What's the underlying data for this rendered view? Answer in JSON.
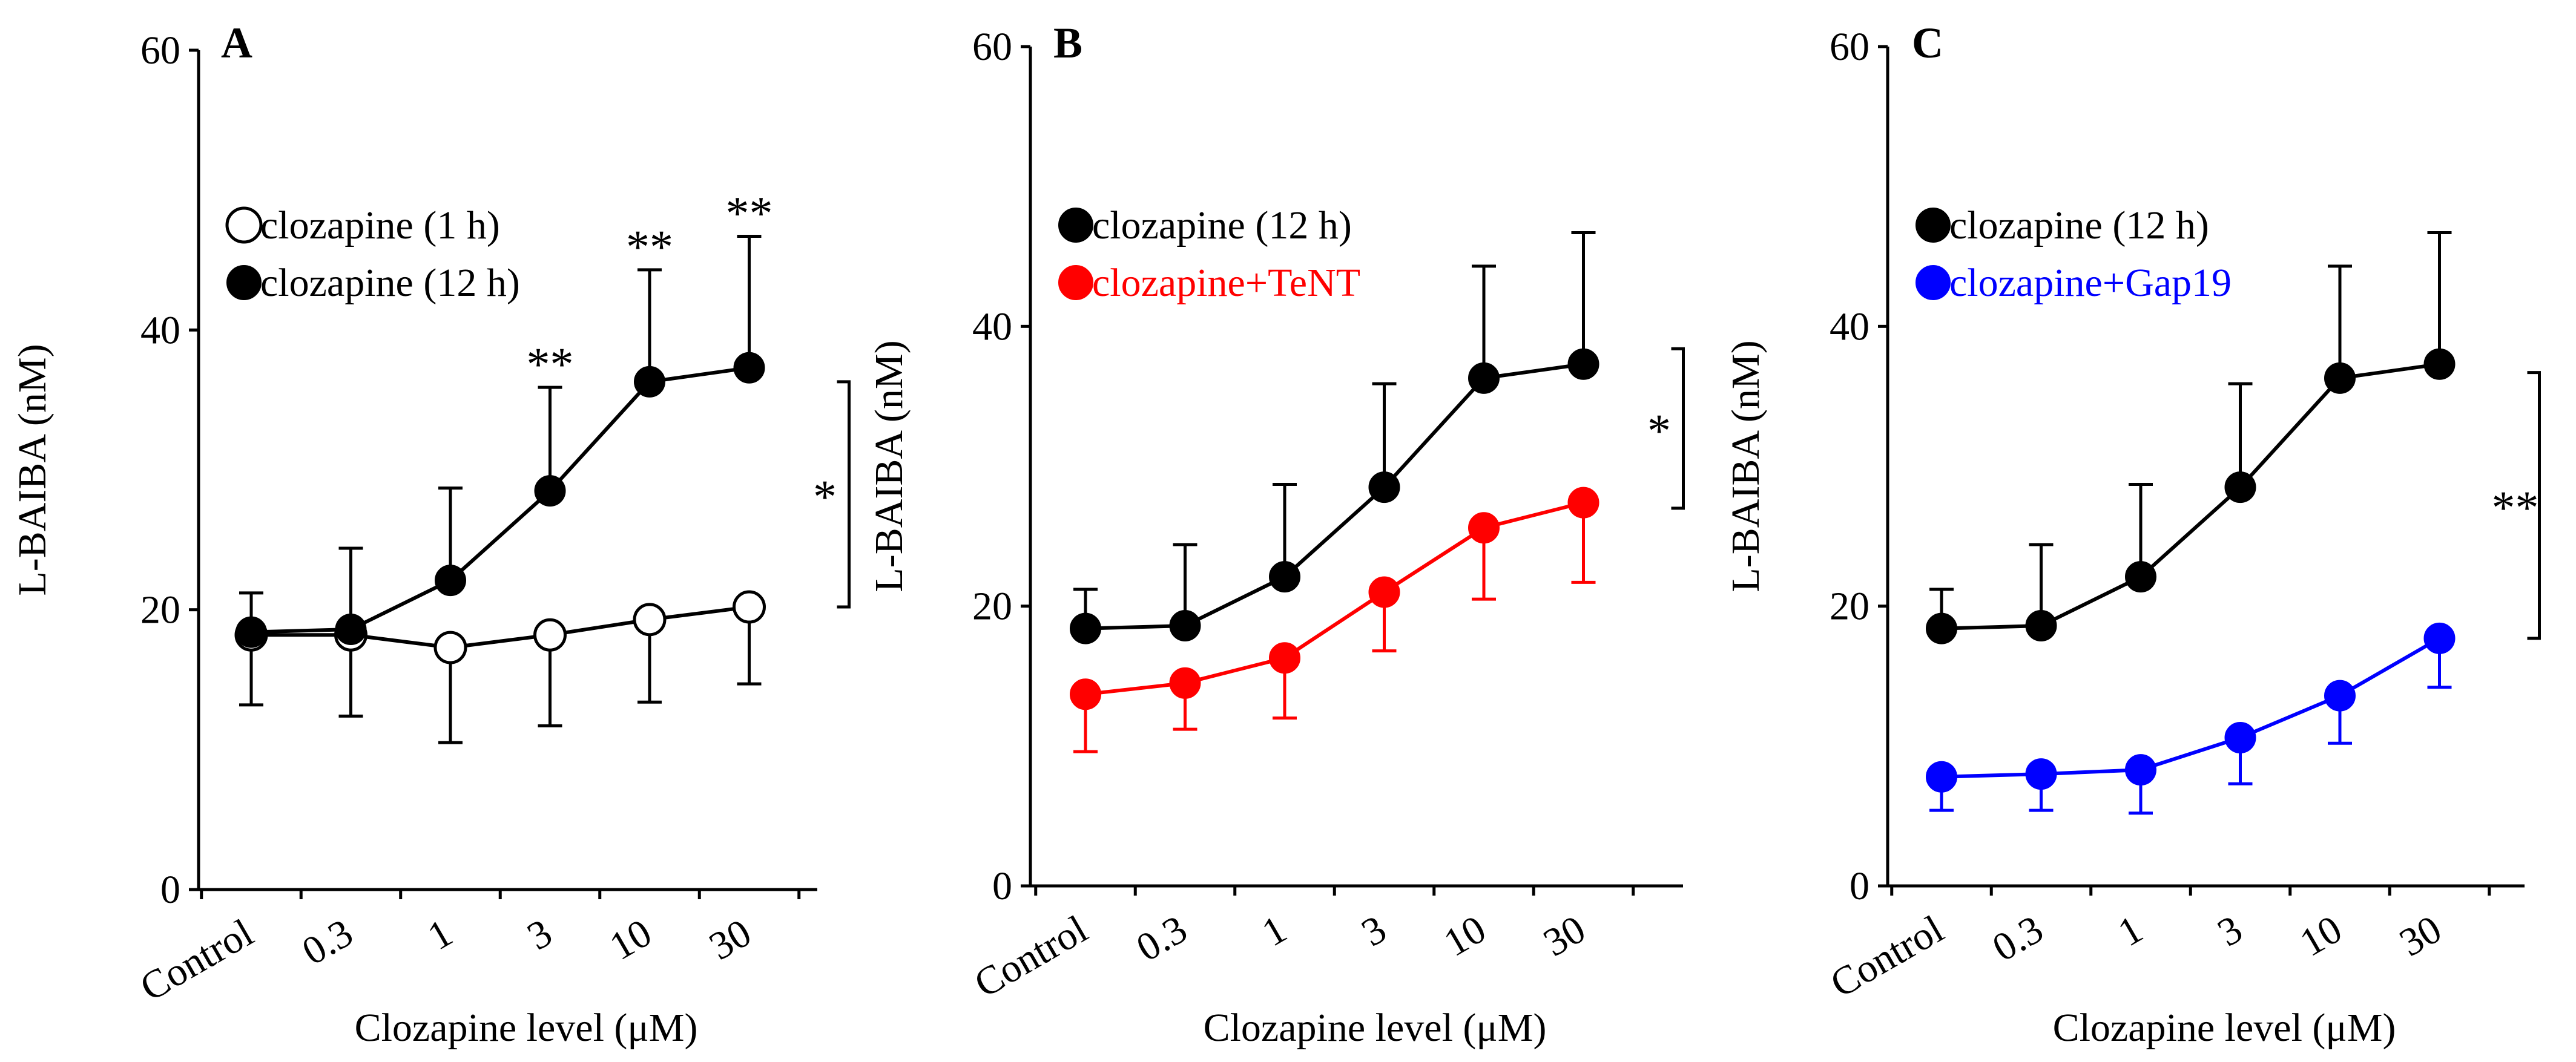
{
  "colors": {
    "black": "#000000",
    "red": "#ff0000",
    "blue": "#0000ff",
    "white": "#ffffff"
  },
  "chart_data": [
    {
      "type": "line",
      "panel": "A",
      "title": "",
      "xlabel": "Clozapine level (μM)",
      "ylabel": "L-BAIBA (nM)",
      "categories": [
        "Control",
        "0.3",
        "1",
        "3",
        "10",
        "30"
      ],
      "ylim": [
        0,
        60
      ],
      "yticks": [
        0,
        20,
        40,
        60
      ],
      "legend_placement": "upper-left",
      "series": [
        {
          "name": "clozapine (1 h)",
          "marker": "open-circle",
          "color": "#000000",
          "values": [
            18.2,
            18.2,
            17.3,
            18.2,
            19.3,
            20.2
          ],
          "error_dir": "down",
          "errors": [
            5.0,
            5.8,
            6.8,
            6.5,
            5.9,
            5.5
          ]
        },
        {
          "name": "clozapine (12 h)",
          "marker": "filled-circle",
          "color": "#000000",
          "values": [
            18.4,
            18.6,
            22.1,
            28.5,
            36.3,
            37.3
          ],
          "error_dir": "up",
          "errors": [
            2.8,
            5.8,
            6.6,
            7.4,
            8.0,
            9.4
          ]
        }
      ],
      "point_annotations": [
        {
          "category": "3",
          "text": "**"
        },
        {
          "category": "10",
          "text": "**"
        },
        {
          "category": "30",
          "text": "**"
        }
      ],
      "bracket": {
        "from": 36.3,
        "to": 20.2,
        "text": "*"
      }
    },
    {
      "type": "line",
      "panel": "B",
      "title": "",
      "xlabel": "Clozapine level (μM)",
      "ylabel": "L-BAIBA (nM)",
      "categories": [
        "Control",
        "0.3",
        "1",
        "3",
        "10",
        "30"
      ],
      "ylim": [
        0,
        60
      ],
      "yticks": [
        0,
        20,
        40,
        60
      ],
      "legend_placement": "upper-left",
      "series": [
        {
          "name": "clozapine (12 h)",
          "marker": "filled-circle",
          "color": "#000000",
          "values": [
            18.4,
            18.6,
            22.1,
            28.5,
            36.3,
            37.3
          ],
          "error_dir": "up",
          "errors": [
            2.8,
            5.8,
            6.6,
            7.4,
            8.0,
            9.4
          ]
        },
        {
          "name": "clozapine+TeNT",
          "marker": "filled-circle",
          "color": "#ff0000",
          "values": [
            13.7,
            14.5,
            16.3,
            21.0,
            25.6,
            27.4
          ],
          "error_dir": "down",
          "errors": [
            4.1,
            3.3,
            4.3,
            4.2,
            5.1,
            5.7
          ]
        }
      ],
      "point_annotations": [],
      "bracket": {
        "from": 38.4,
        "to": 27.0,
        "text": "*"
      }
    },
    {
      "type": "line",
      "panel": "C",
      "title": "",
      "xlabel": "Clozapine level (μM)",
      "ylabel": "L-BAIBA (nM)",
      "categories": [
        "Control",
        "0.3",
        "1",
        "3",
        "10",
        "30"
      ],
      "ylim": [
        0,
        60
      ],
      "yticks": [
        0,
        20,
        40,
        60
      ],
      "legend_placement": "upper-left",
      "series": [
        {
          "name": "clozapine (12 h)",
          "marker": "filled-circle",
          "color": "#000000",
          "values": [
            18.4,
            18.6,
            22.1,
            28.5,
            36.3,
            37.3
          ],
          "error_dir": "up",
          "errors": [
            2.8,
            5.8,
            6.6,
            7.4,
            8.0,
            9.4
          ]
        },
        {
          "name": "clozapine+Gap19",
          "marker": "filled-circle",
          "color": "#0000ff",
          "values": [
            7.8,
            8.0,
            8.3,
            10.6,
            13.6,
            17.7
          ],
          "error_dir": "down",
          "errors": [
            2.4,
            2.6,
            3.1,
            3.3,
            3.4,
            3.5
          ]
        }
      ],
      "point_annotations": [],
      "bracket": {
        "from": 36.7,
        "to": 17.7,
        "text": "**"
      }
    }
  ]
}
